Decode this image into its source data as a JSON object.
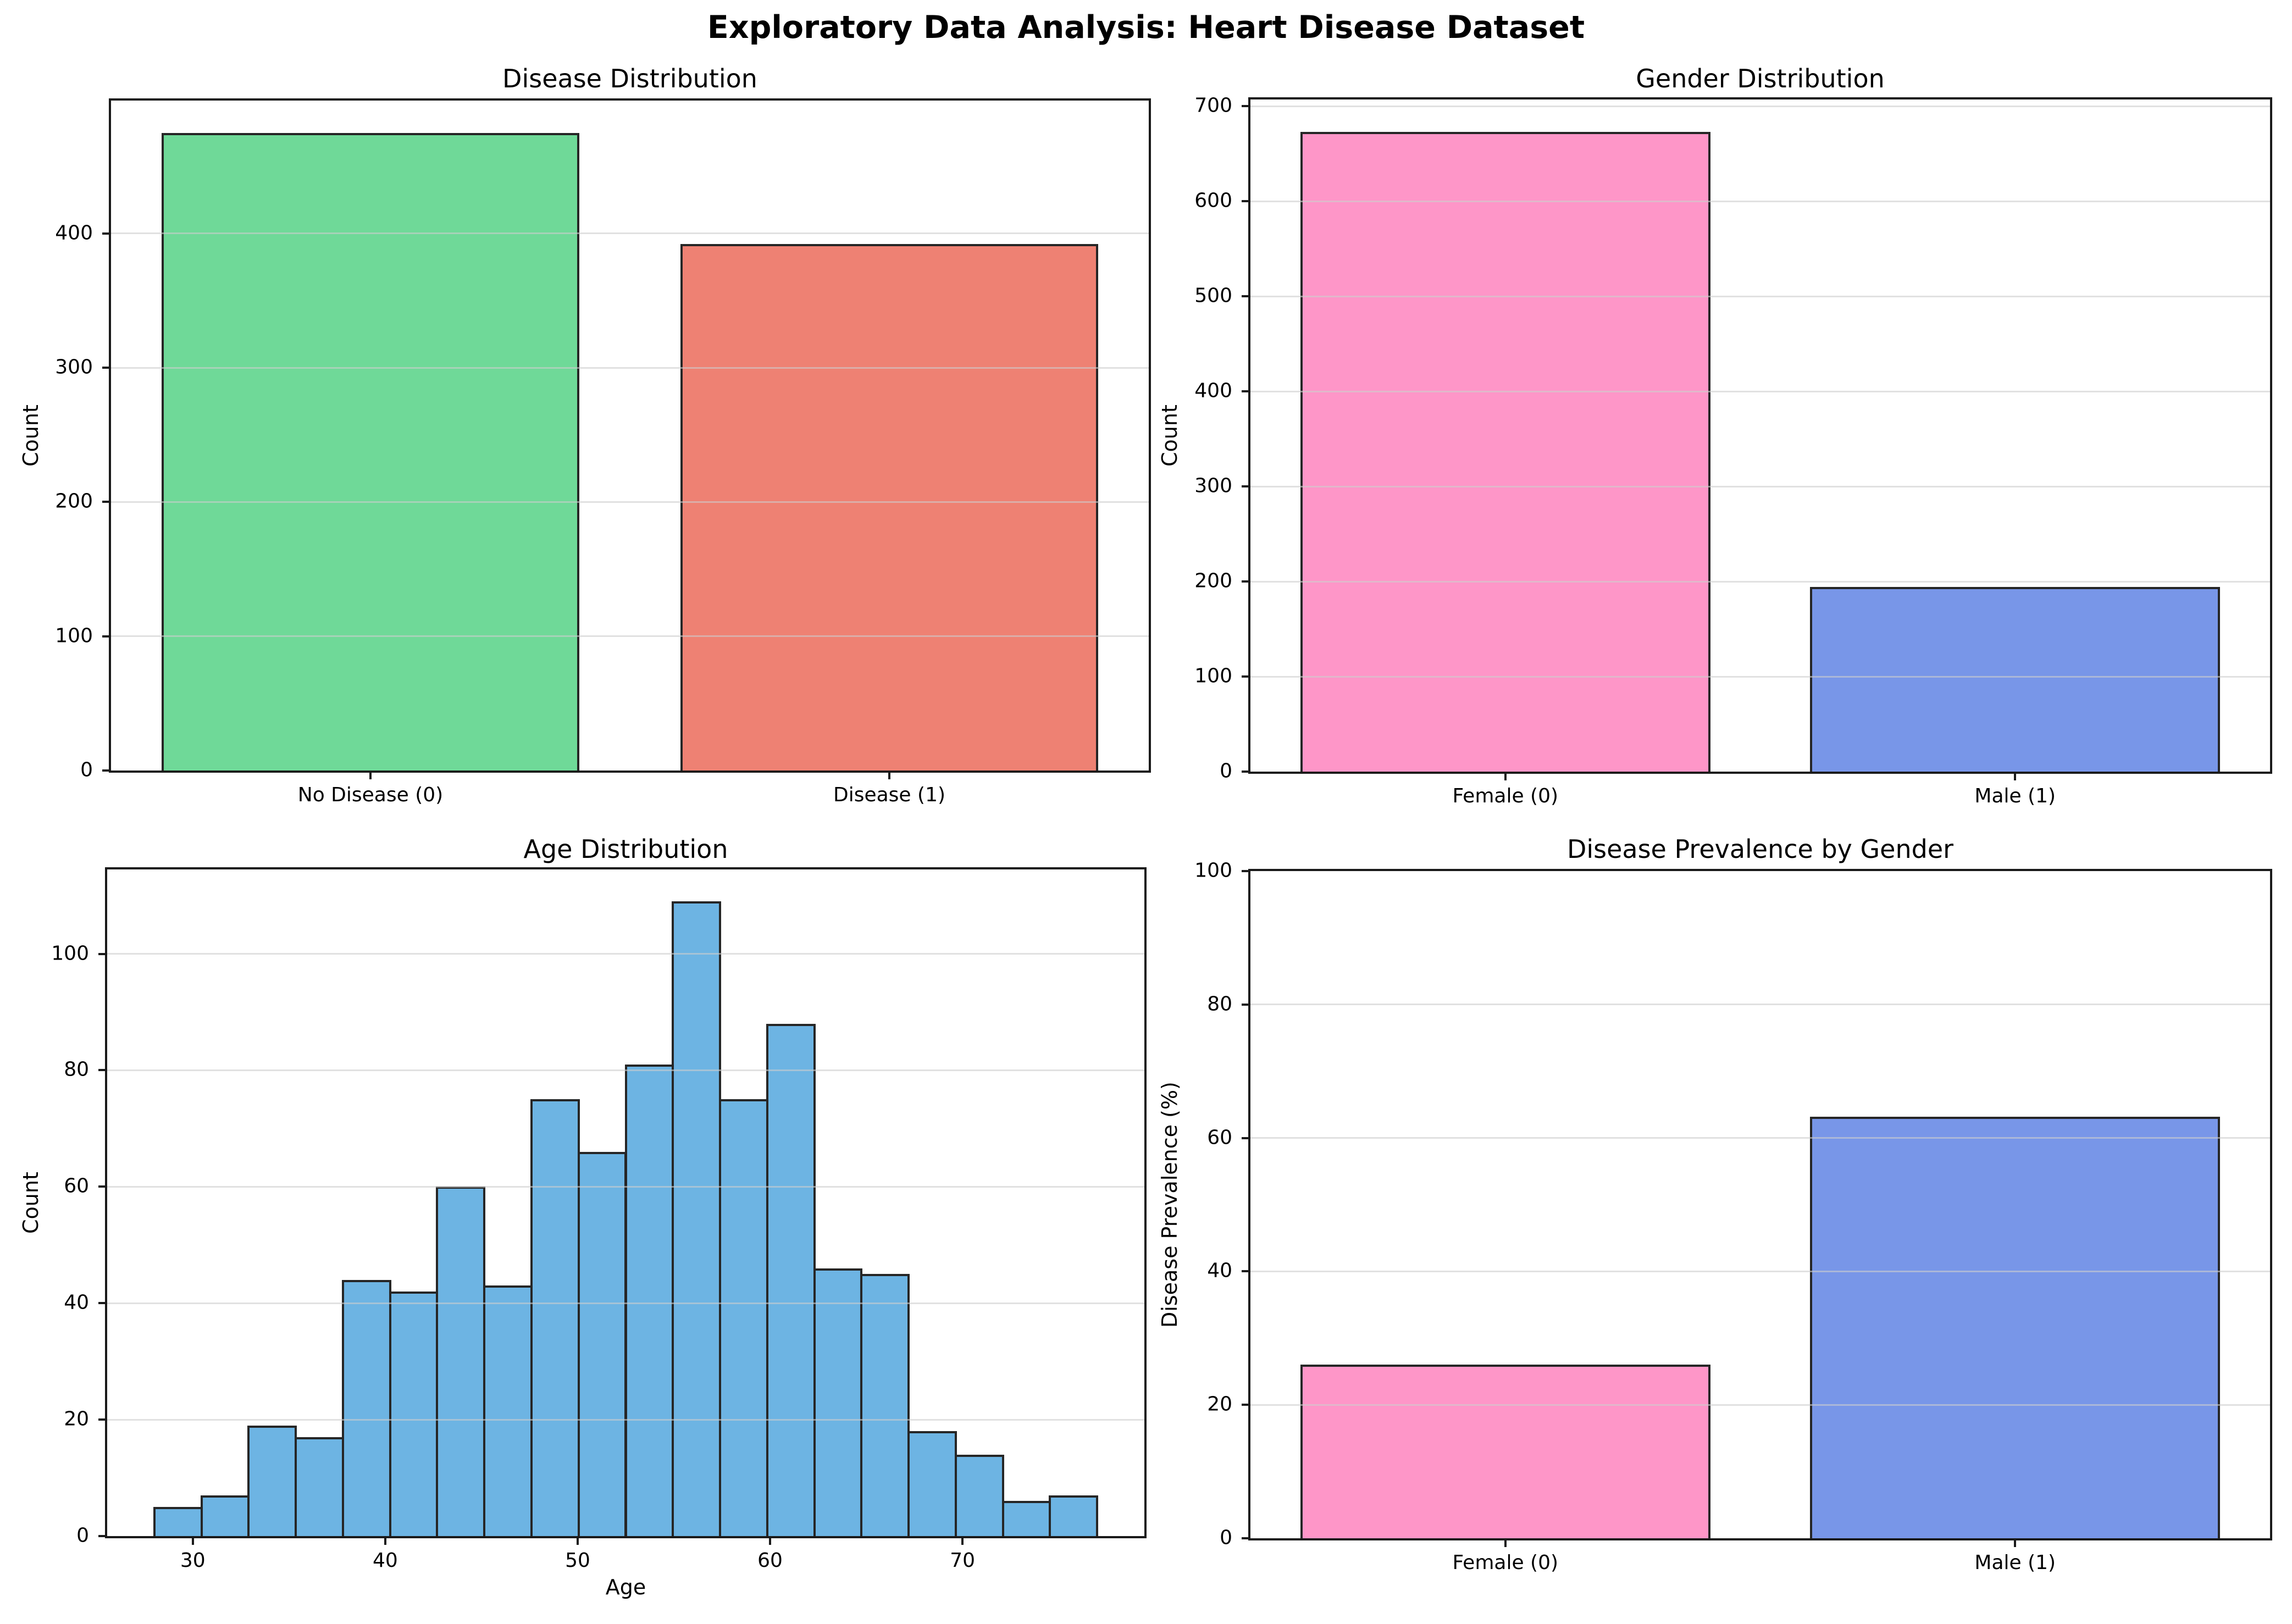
{
  "page_title": "Exploratory Data Analysis: Heart Disease Dataset",
  "colors": {
    "bar_edge": "#262626",
    "spine": "#1a1a1a",
    "grid": "#cdcdcd",
    "no_disease_green": "#6FD998",
    "disease_salmon": "#EE8173",
    "female_pink": "#FE96C8",
    "male_blue": "#7896E8",
    "age_hist_blue": "#6DB4E3"
  },
  "chart_data": [
    {
      "id": "disease_distribution",
      "type": "bar",
      "title": "Disease Distribution",
      "ylabel": "Count",
      "categories": [
        "No Disease (0)",
        "Disease (1)"
      ],
      "values": [
        475,
        392
      ],
      "bar_colors": [
        "#6FD998",
        "#EE8173"
      ],
      "ylim": [
        0,
        499
      ],
      "yticks": [
        0,
        100,
        200,
        300,
        400
      ],
      "grid": "horizontal",
      "legend": "none"
    },
    {
      "id": "gender_distribution",
      "type": "bar",
      "title": "Gender Distribution",
      "ylabel": "Count",
      "categories": [
        "Female (0)",
        "Male (1)"
      ],
      "values": [
        673,
        194
      ],
      "bar_colors": [
        "#FE96C8",
        "#7896E8"
      ],
      "ylim": [
        0,
        707
      ],
      "yticks": [
        0,
        100,
        200,
        300,
        400,
        500,
        600,
        700
      ],
      "grid": "horizontal",
      "legend": "none"
    },
    {
      "id": "age_distribution",
      "type": "histogram",
      "title": "Age Distribution",
      "xlabel": "Age",
      "ylabel": "Count",
      "bin_start": 28,
      "bin_width": 2.45,
      "bin_count": 20,
      "counts": [
        5,
        7,
        19,
        17,
        44,
        42,
        60,
        43,
        75,
        66,
        81,
        109,
        75,
        88,
        46,
        45,
        18,
        14,
        6,
        7
      ],
      "bar_color": "#6DB4E3",
      "xlim": [
        25.55,
        79.45
      ],
      "ylim": [
        0,
        114.5
      ],
      "yticks": [
        0,
        20,
        40,
        60,
        80,
        100
      ],
      "xticks": [
        30,
        40,
        50,
        60,
        70
      ],
      "grid": "horizontal",
      "legend": "none"
    },
    {
      "id": "disease_prevalence_by_gender",
      "type": "bar",
      "title": "Disease Prevalence by Gender",
      "ylabel": "Disease Prevalence (%)",
      "categories": [
        "Female (0)",
        "Male (1)"
      ],
      "values": [
        26,
        63.2
      ],
      "bar_colors": [
        "#FE96C8",
        "#7896E8"
      ],
      "ylim": [
        0,
        100
      ],
      "yticks": [
        0,
        20,
        40,
        60,
        80,
        100
      ],
      "grid": "horizontal",
      "legend": "none"
    }
  ]
}
